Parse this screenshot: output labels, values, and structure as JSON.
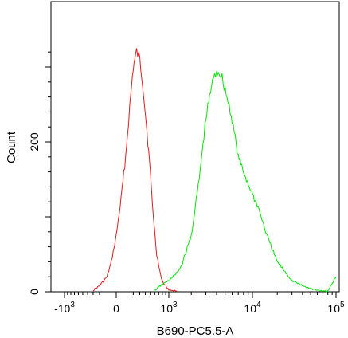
{
  "chart_data": {
    "type": "line",
    "title": "",
    "xlabel": "B690-PC5.5-A",
    "ylabel": "Count",
    "x_scale": "logicle",
    "xlim": [
      -2000,
      100000
    ],
    "ylim": [
      0,
      400
    ],
    "grid": false,
    "legend": "none",
    "x_ticks": [
      {
        "value": -1000,
        "base": "-10",
        "exp": "3"
      },
      {
        "value": 0,
        "base": "0",
        "exp": ""
      },
      {
        "value": 1000,
        "base": "10",
        "exp": "3"
      },
      {
        "value": 10000,
        "base": "10",
        "exp": "4"
      },
      {
        "value": 100000,
        "base": "10",
        "exp": "5"
      }
    ],
    "y_ticks": [
      {
        "value": 0,
        "label": "0"
      },
      {
        "value": 200,
        "label": "200"
      }
    ],
    "series": [
      {
        "color": "#e41a1c",
        "x": [
          -300,
          -200,
          -100,
          -50,
          0,
          50,
          100,
          150,
          200,
          250,
          300,
          350,
          400,
          450,
          500,
          550,
          600,
          650,
          700,
          750,
          800,
          850,
          900,
          950,
          1000,
          1100,
          1300
        ],
        "y": [
          2,
          8,
          20,
          40,
          75,
          125,
          180,
          245,
          300,
          320,
          310,
          280,
          240,
          200,
          160,
          115,
          80,
          50,
          35,
          22,
          15,
          10,
          8,
          5,
          3,
          2,
          1
        ]
      },
      {
        "color": "#00e600",
        "x": [
          600,
          700,
          800,
          1000,
          1300,
          1500,
          2000,
          2500,
          3000,
          3500,
          4000,
          4500,
          5000,
          6000,
          7000,
          8000,
          10000,
          12000,
          15000,
          20000,
          30000,
          40000,
          50000,
          60000,
          80000,
          100000
        ],
        "y": [
          2,
          6,
          10,
          15,
          25,
          35,
          75,
          150,
          230,
          275,
          295,
          290,
          270,
          230,
          180,
          160,
          130,
          110,
          75,
          40,
          15,
          8,
          4,
          2,
          1,
          20
        ]
      }
    ]
  }
}
